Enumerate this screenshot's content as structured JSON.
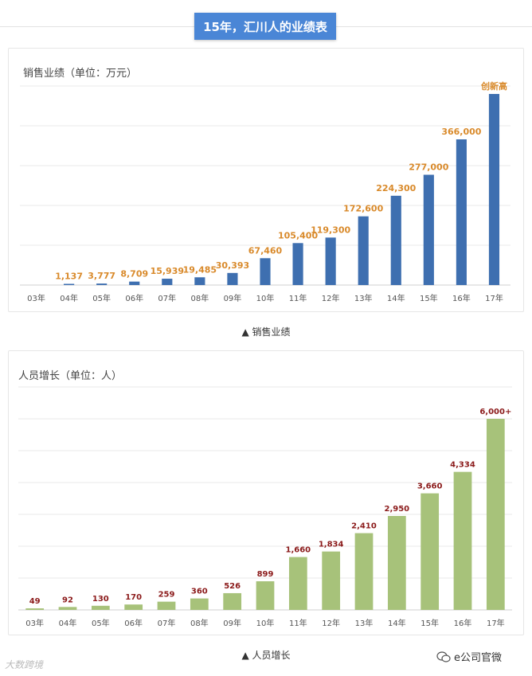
{
  "header": {
    "title": "15年，汇川人的业绩表"
  },
  "captions": {
    "chart1": "▲ 销售业绩",
    "chart2": "▲ 人员增长"
  },
  "footer": {
    "left_watermark": "大数跨境",
    "right_text": "e公司官微"
  },
  "chart_data": [
    {
      "type": "bar",
      "title": "销售业绩（单位：万元）",
      "categories": [
        "03年",
        "04年",
        "05年",
        "06年",
        "07年",
        "08年",
        "09年",
        "10年",
        "11年",
        "12年",
        "13年",
        "14年",
        "15年",
        "16年",
        "17年"
      ],
      "values": [
        0,
        1137,
        3777,
        8709,
        15939,
        19485,
        30393,
        67460,
        105400,
        119300,
        172600,
        224300,
        277000,
        366000,
        480000
      ],
      "value_labels": [
        "",
        "1,137",
        "3,777",
        "8,709",
        "15,939",
        "19,485",
        "30,393",
        "67,460",
        "105,400",
        "119,300",
        "172,600",
        "224,300",
        "277,000",
        "366,000",
        "创新高"
      ],
      "bar_color": "#3e6fb0",
      "label_color": "#d98a2b",
      "ylim": [
        0,
        500000
      ],
      "grid": true
    },
    {
      "type": "bar",
      "title": "人员增长（单位：人）",
      "categories": [
        "03年",
        "04年",
        "05年",
        "06年",
        "07年",
        "08年",
        "09年",
        "10年",
        "11年",
        "12年",
        "13年",
        "14年",
        "15年",
        "16年",
        "17年"
      ],
      "values": [
        49,
        92,
        130,
        170,
        259,
        360,
        526,
        899,
        1660,
        1834,
        2410,
        2950,
        3660,
        4334,
        6000
      ],
      "value_labels": [
        "49",
        "92",
        "130",
        "170",
        "259",
        "360",
        "526",
        "899",
        "1,660",
        "1,834",
        "2,410",
        "2,950",
        "3,660",
        "4,334",
        "6,000+"
      ],
      "bar_color": "#a7c27a",
      "label_color": "#8b1a1a",
      "ylim": [
        0,
        7000
      ],
      "grid": true
    }
  ]
}
